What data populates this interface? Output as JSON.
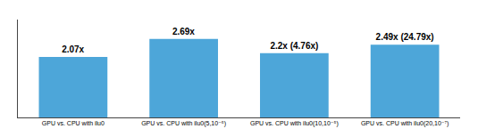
{
  "chart_data": {
    "type": "bar",
    "categories": [
      "GPU vs. CPU with ilu0",
      "GPU vs. CPU with ilu0(5,10⁻⁵)",
      "GPU vs. CPU with ilu0(10,10⁻⁵)",
      "GPU vs. CPU with ilu0(20,10⁻⁷)"
    ],
    "values": [
      2.07,
      2.69,
      2.2,
      2.49
    ],
    "value_labels": [
      "2.07x",
      "2.69x",
      "2.2x (4.76x)",
      "2.49x (24.79x)"
    ],
    "data_labels": true,
    "color": "#4da6d9",
    "ylim": [
      0,
      3.35
    ],
    "yticks": [],
    "tick_labels": "x",
    "grid": false
  }
}
